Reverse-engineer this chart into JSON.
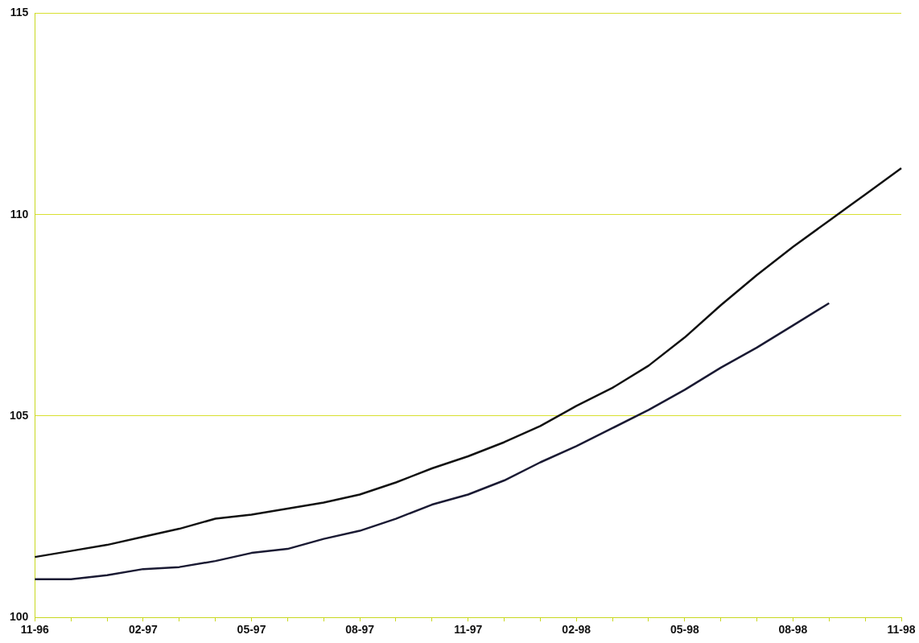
{
  "chart_data": {
    "type": "line",
    "categories": [
      "11-96",
      null,
      null,
      "02-97",
      null,
      null,
      "05-97",
      null,
      null,
      "08-97",
      null,
      null,
      "11-97",
      null,
      null,
      "02-98",
      null,
      null,
      "05-98",
      null,
      null,
      "08-98",
      null,
      null,
      "11-98"
    ],
    "series": [
      {
        "color": "#111111",
        "values": [
          101.5,
          101.65,
          101.8,
          102.0,
          102.2,
          102.45,
          102.55,
          102.7,
          102.85,
          103.05,
          103.35,
          103.7,
          104.0,
          104.35,
          104.75,
          105.25,
          105.7,
          106.25,
          106.95,
          107.75,
          108.5,
          109.2,
          109.85,
          110.5,
          111.15
        ]
      },
      {
        "color": "#1a1a33",
        "values": [
          100.95,
          100.95,
          101.05,
          101.2,
          101.25,
          101.4,
          101.6,
          101.7,
          101.95,
          102.15,
          102.45,
          102.8,
          103.05,
          103.4,
          103.85,
          104.25,
          104.7,
          105.15,
          105.65,
          106.2,
          106.7,
          107.25,
          107.8,
          null,
          null
        ]
      }
    ],
    "ylim": [
      100,
      115
    ],
    "yticks": [
      100,
      105,
      110,
      115
    ],
    "grid": "y",
    "legend": false,
    "marker": "none",
    "line_style": "solid"
  }
}
